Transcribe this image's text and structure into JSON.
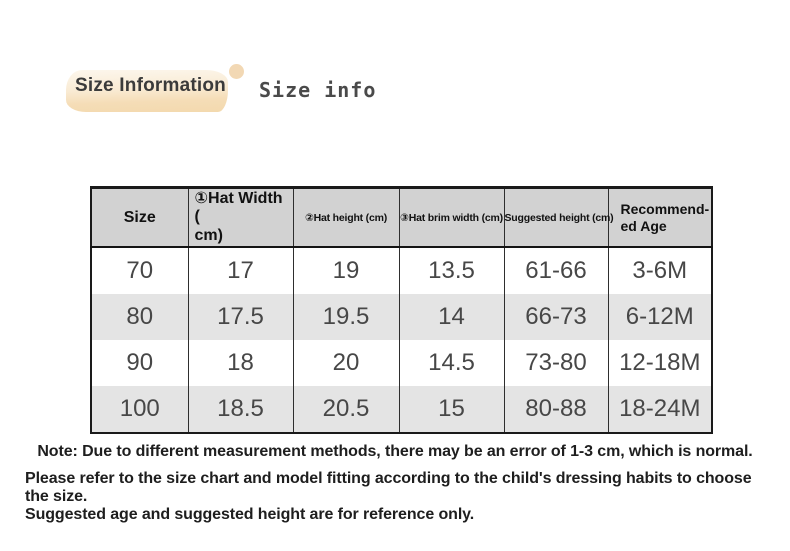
{
  "page": {
    "title": "Size Information",
    "subtitle": "Size info"
  },
  "table": {
    "headers": [
      {
        "label": "Size"
      },
      {
        "lines": [
          "①Hat Width (",
          "cm)"
        ]
      },
      {
        "label": "②Hat height (cm)"
      },
      {
        "label": "③Hat brim width (cm)"
      },
      {
        "label": "Suggested height (cm)"
      },
      {
        "lines": [
          "Recommend-",
          "ed Age"
        ]
      }
    ],
    "rows": [
      [
        "70",
        "17",
        "19",
        "13.5",
        "61-66",
        "3-6M"
      ],
      [
        "80",
        "17.5",
        "19.5",
        "14",
        "66-73",
        "6-12M"
      ],
      [
        "90",
        "18",
        "20",
        "14.5",
        "73-80",
        "12-18M"
      ],
      [
        "100",
        "18.5",
        "20.5",
        "15",
        "80-88",
        "18-24M"
      ]
    ]
  },
  "notes": {
    "note": "Note: Due to different measurement methods, there may be an error of 1-3 cm, which is normal.",
    "advice_lines": [
      "Please refer to the size chart and model fitting according to the child's dressing habits to choose the size.",
      "Suggested age and suggested height are for reference only."
    ]
  },
  "colors": {
    "highlight": "#f5ddb7",
    "accent_dot": "#f2d8b4",
    "header_bg": "#d2d2d2",
    "row_alt_bg": "#e4e4e4",
    "table_border": "#1a1a1a",
    "data_text": "#474747",
    "note_text": "#1e1e1e"
  }
}
